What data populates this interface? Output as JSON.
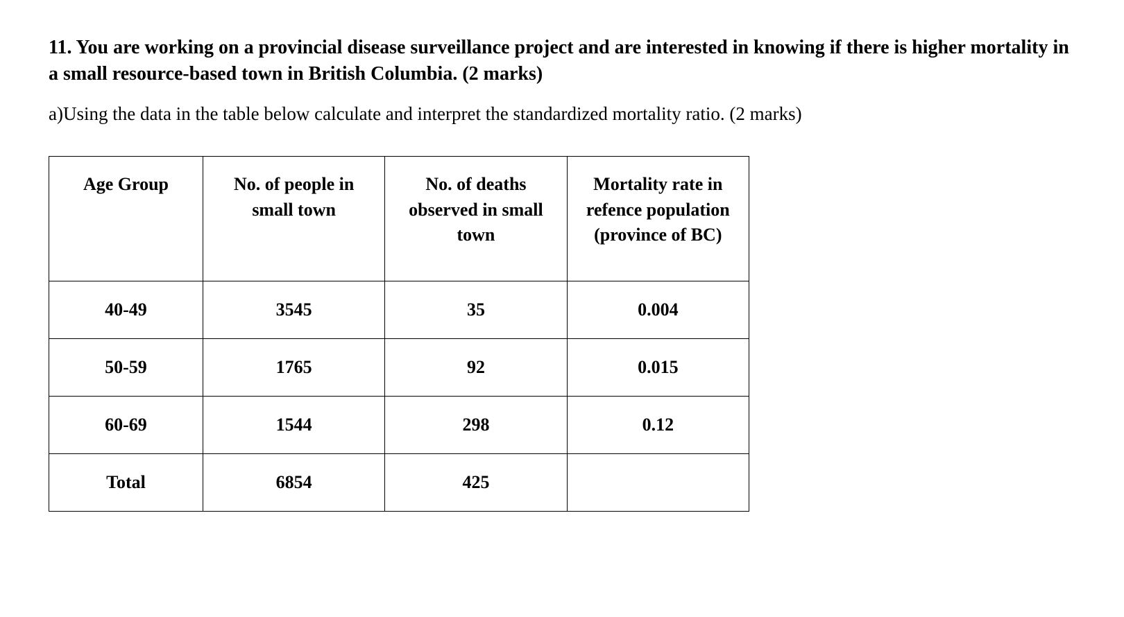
{
  "question": {
    "title": " 11. You are working on a provincial disease surveillance project and are interested in knowing if there is higher mortality in a small resource-based town in British Columbia. (2 marks)",
    "part_a": "a)Using the data in the table below calculate and interpret the standardized mortality ratio. (2 marks)"
  },
  "table": {
    "columns": [
      "Age Group",
      "No. of people in small town",
      "No. of deaths observed in small town",
      "Mortality rate in refence population (province of BC)"
    ],
    "rows": [
      {
        "age_group": "40-49",
        "people": "3545",
        "deaths": "35",
        "rate": "0.004"
      },
      {
        "age_group": "50-59",
        "people": "1765",
        "deaths": "92",
        "rate": "0.015"
      },
      {
        "age_group": "60-69",
        "people": "1544",
        "deaths": "298",
        "rate": "0.12"
      },
      {
        "age_group": "Total",
        "people": "6854",
        "deaths": "425",
        "rate": ""
      }
    ],
    "column_widths_pct": [
      22,
      26,
      26,
      26
    ],
    "border_color": "#000000",
    "background_color": "#ffffff",
    "header_fontsize": 26,
    "cell_fontsize": 26,
    "font_weight": "bold"
  },
  "typography": {
    "title_fontsize": 28,
    "body_fontsize": 27,
    "font_family": "Times New Roman",
    "text_color": "#000000"
  }
}
